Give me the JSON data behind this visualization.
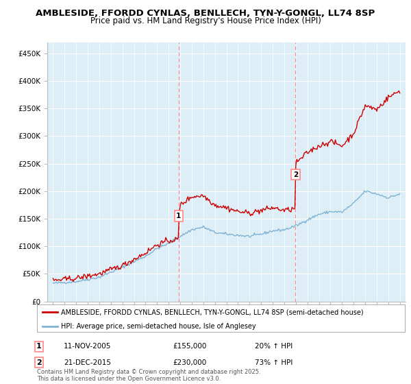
{
  "title": "AMBLESIDE, FFORDD CYNLAS, BENLLECH, TYN-Y-GONGL, LL74 8SP",
  "subtitle": "Price paid vs. HM Land Registry's House Price Index (HPI)",
  "title_fontsize": 9.5,
  "subtitle_fontsize": 8.5,
  "xlim": [
    1994.5,
    2025.5
  ],
  "ylim": [
    0,
    470000
  ],
  "yticks": [
    0,
    50000,
    100000,
    150000,
    200000,
    250000,
    300000,
    350000,
    400000,
    450000
  ],
  "ytick_labels": [
    "£0",
    "£50K",
    "£100K",
    "£150K",
    "£200K",
    "£250K",
    "£300K",
    "£350K",
    "£400K",
    "£450K"
  ],
  "xticks": [
    1995,
    1996,
    1997,
    1998,
    1999,
    2000,
    2001,
    2002,
    2003,
    2004,
    2005,
    2006,
    2007,
    2008,
    2009,
    2010,
    2011,
    2012,
    2013,
    2014,
    2015,
    2016,
    2017,
    2018,
    2019,
    2020,
    2021,
    2022,
    2023,
    2024,
    2025
  ],
  "property_color": "#cc0000",
  "hpi_color": "#7fb3d3",
  "vline_color": "#ff8888",
  "transaction1_x": 2005.87,
  "transaction1_y": 155000,
  "transaction1_label": "1",
  "transaction2_x": 2015.97,
  "transaction2_y": 230000,
  "transaction2_label": "2",
  "legend_property": "AMBLESIDE, FFORDD CYNLAS, BENLLECH, TYN-Y-GONGL, LL74 8SP (semi-detached house)",
  "legend_hpi": "HPI: Average price, semi-detached house, Isle of Anglesey",
  "footnote": "Contains HM Land Registry data © Crown copyright and database right 2025.\nThis data is licensed under the Open Government Licence v3.0.",
  "annotation1_date": "11-NOV-2005",
  "annotation1_price": "£155,000",
  "annotation1_hpi": "20% ↑ HPI",
  "annotation2_date": "21-DEC-2015",
  "annotation2_price": "£230,000",
  "annotation2_hpi": "73% ↑ HPI",
  "background_color": "#ddeef6"
}
